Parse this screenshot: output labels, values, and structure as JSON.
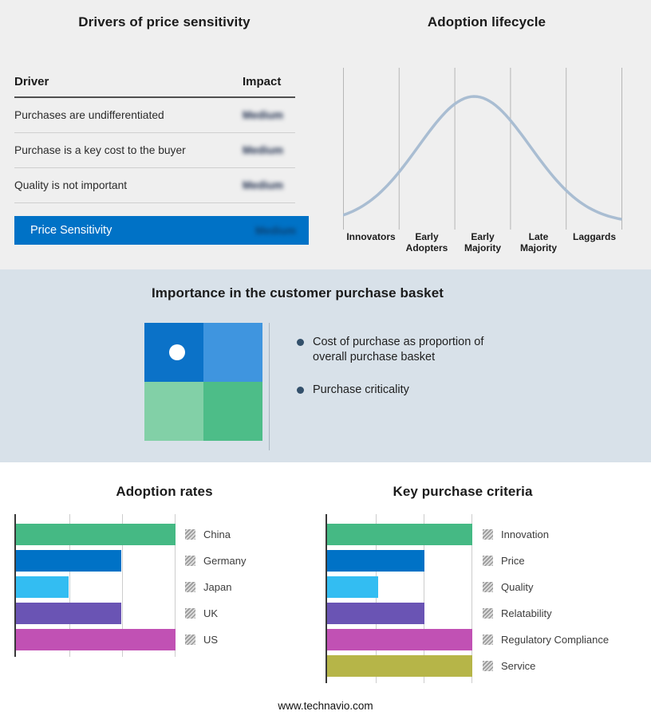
{
  "drivers_panel": {
    "title": "Drivers of price sensitivity",
    "columns": {
      "driver": "Driver",
      "impact": "Impact"
    },
    "rows": [
      {
        "driver": "Purchases are undifferentiated",
        "impact": "Medium"
      },
      {
        "driver": "Purchase is a key cost to the buyer",
        "impact": "Medium"
      },
      {
        "driver": "Quality is not important",
        "impact": "Medium"
      }
    ],
    "summary_row": {
      "label": "Price Sensitivity",
      "impact": "Medium",
      "color": "#0072c6"
    },
    "impact_values_blurred": true
  },
  "basket_panel": {
    "title": "Importance in the customer purchase basket",
    "bullets": [
      "Cost of purchase as proportion of overall purchase basket",
      "Purchase criticality"
    ],
    "quadrant_colors": {
      "top_left": "#0b72c8",
      "top_right": "#3f95df",
      "bottom_left": "#82d0a7",
      "bottom_right": "#4dbd88"
    },
    "marker": "white-dot-top-left-quadrant"
  },
  "footer": {
    "url": "www.technavio.com"
  },
  "chart_data": [
    {
      "type": "line",
      "title": "Adoption lifecycle",
      "shape": "bell-curve",
      "x_categories": [
        "Innovators",
        "Early Adopters",
        "Early Majority",
        "Late Majority",
        "Laggards"
      ],
      "peak_x_pct": 47,
      "sigma_pct": 20,
      "line_color": "#a9bdd2",
      "grid": true
    },
    {
      "type": "bar",
      "title": "Adoption rates",
      "orientation": "horizontal",
      "categories": [
        "China",
        "Germany",
        "Japan",
        "UK",
        "US"
      ],
      "values": [
        100,
        66,
        33,
        66,
        100
      ],
      "colors": [
        "#45b984",
        "#0072c6",
        "#33bdf2",
        "#6a54b4",
        "#c151b4"
      ],
      "xlim": [
        0,
        100
      ],
      "grid": true,
      "legend_position": "right",
      "legend_marker": "hatched-square"
    },
    {
      "type": "bar",
      "title": "Key purchase criteria",
      "orientation": "horizontal",
      "categories": [
        "Innovation",
        "Price",
        "Quality",
        "Relatability",
        "Regulatory Compliance",
        "Service"
      ],
      "values": [
        100,
        67,
        35,
        67,
        100,
        100
      ],
      "colors": [
        "#45b984",
        "#0072c6",
        "#33bdf2",
        "#6a54b4",
        "#c151b4",
        "#b6b548"
      ],
      "xlim": [
        0,
        100
      ],
      "grid": true,
      "legend_position": "right",
      "legend_marker": "hatched-square"
    }
  ]
}
